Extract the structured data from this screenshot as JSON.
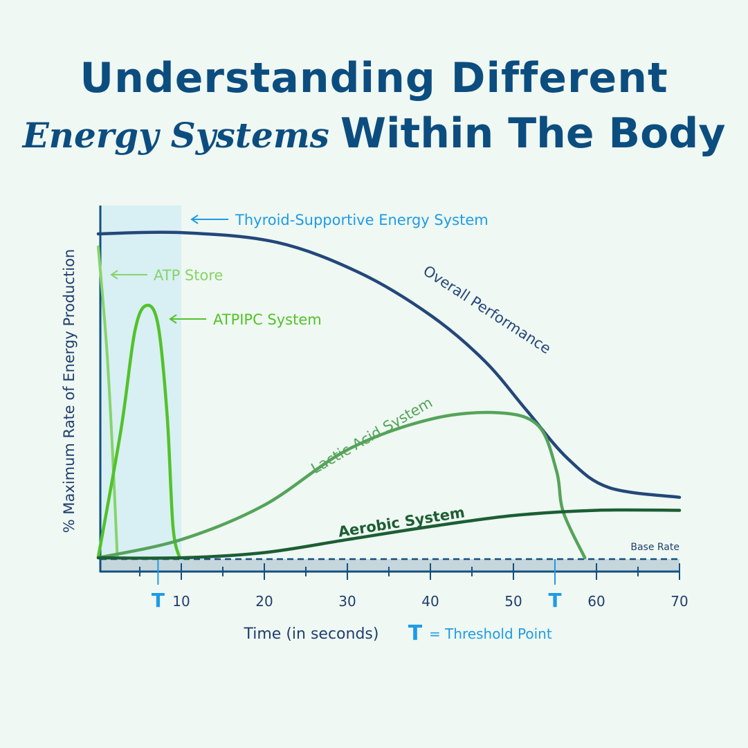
{
  "title_line1": "Understanding Different",
  "title_script": "Energy Systems",
  "title_line2_rest": "Within The Body",
  "chart_data": {
    "type": "line",
    "xlabel": "Time (in seconds)",
    "ylabel": "% Maximum Rate of Energy Production",
    "xlim": [
      0,
      70
    ],
    "ylim": [
      0,
      100
    ],
    "x_ticks": [
      10,
      20,
      30,
      40,
      50,
      60,
      70
    ],
    "minor_ticks": [
      5,
      15,
      25,
      35,
      45,
      55,
      65
    ],
    "grid": false,
    "shaded_region": {
      "label": "Thyroid-Supportive Energy System",
      "x": [
        0,
        10
      ],
      "color": "#d8eff3"
    },
    "base_rate": {
      "label": "Base Rate",
      "y": 0
    },
    "threshold_points": {
      "marker": "T",
      "legend": "= Threshold Point",
      "x": [
        7.2,
        55
      ],
      "color": "#1e9be6"
    },
    "series": [
      {
        "name": "Overall Performance",
        "color": "#24477a",
        "points": [
          [
            0,
            100
          ],
          [
            10,
            100.4
          ],
          [
            21.5,
            97.4
          ],
          [
            31.5,
            88
          ],
          [
            40,
            75
          ],
          [
            46.5,
            61
          ],
          [
            51.5,
            46
          ],
          [
            56.5,
            31
          ],
          [
            61.5,
            22
          ],
          [
            70,
            19
          ]
        ]
      },
      {
        "name": "ATP Store",
        "color": "#86d46a",
        "points": [
          [
            0,
            96
          ],
          [
            1,
            65.5
          ],
          [
            1.7,
            34
          ],
          [
            2.3,
            0.5
          ]
        ]
      },
      {
        "name": "ATPIPC System",
        "color": "#52c22a",
        "points": [
          [
            0,
            0.6
          ],
          [
            2.75,
            40
          ],
          [
            4.4,
            70
          ],
          [
            5.8,
            78
          ],
          [
            7.2,
            72
          ],
          [
            8.3,
            44
          ],
          [
            9,
            10
          ],
          [
            9.8,
            0.4
          ]
        ]
      },
      {
        "name": "Lactic Acid System",
        "color": "#55a35a",
        "points": [
          [
            0,
            0.4
          ],
          [
            10,
            6
          ],
          [
            20,
            16.6
          ],
          [
            30,
            33.6
          ],
          [
            40,
            43
          ],
          [
            48.2,
            45
          ],
          [
            53,
            41
          ],
          [
            55.2,
            27
          ],
          [
            56,
            14.5
          ],
          [
            58.6,
            0.4
          ]
        ]
      },
      {
        "name": "Aerobic System",
        "color": "#1c5e34",
        "points": [
          [
            0,
            0.4
          ],
          [
            10,
            0.4
          ],
          [
            20,
            2
          ],
          [
            30,
            6
          ],
          [
            40,
            10
          ],
          [
            50,
            13.4
          ],
          [
            60,
            15
          ],
          [
            70,
            15
          ]
        ]
      }
    ]
  },
  "colors": {
    "axis": "#14507f",
    "band": "#c5d6dc",
    "threshold": "#1e9be6",
    "title": "#0c4d80"
  }
}
